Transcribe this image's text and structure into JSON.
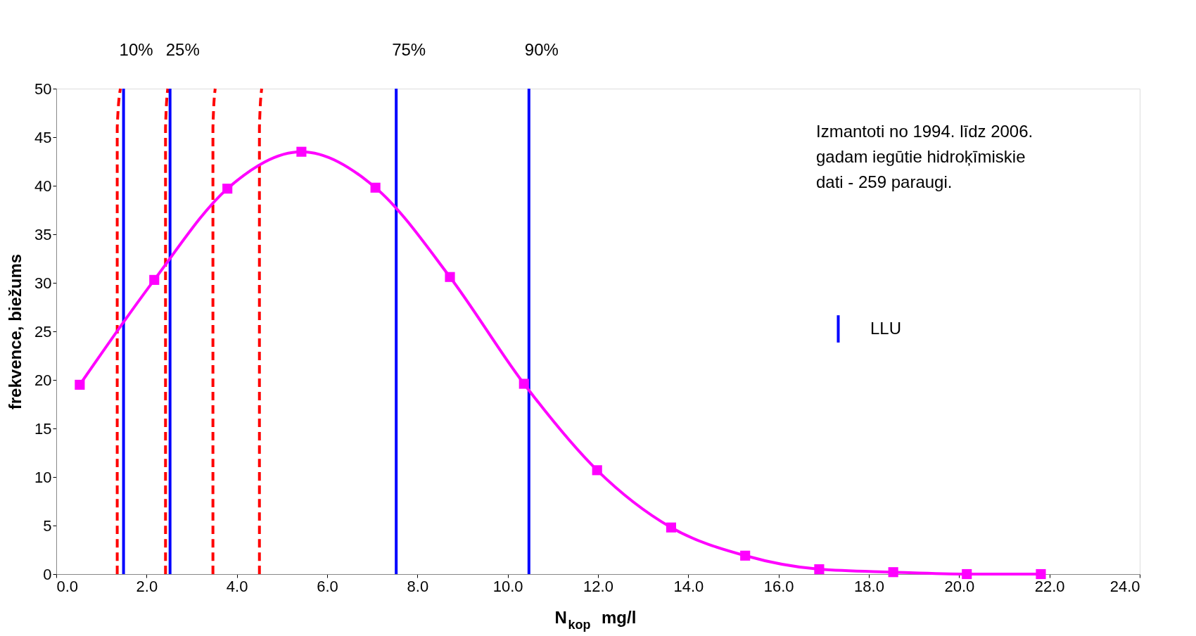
{
  "chart_data": {
    "type": "line",
    "xlabel": "N$_{kop}$ mg/l",
    "ylabel": "frekvence, biežums",
    "xlim": [
      0,
      24
    ],
    "ylim": [
      0,
      50
    ],
    "xticks": [
      {
        "value": 0,
        "label": "0.0"
      },
      {
        "value": 2,
        "label": "2.0"
      },
      {
        "value": 4,
        "label": "4.0"
      },
      {
        "value": 6,
        "label": "6.0"
      },
      {
        "value": 8,
        "label": "8.0"
      },
      {
        "value": 10,
        "label": "10.0"
      },
      {
        "value": 12,
        "label": "12.0"
      },
      {
        "value": 14,
        "label": "14.0"
      },
      {
        "value": 16,
        "label": "16.0"
      },
      {
        "value": 18,
        "label": "18.0"
      },
      {
        "value": 20,
        "label": "20.0"
      },
      {
        "value": 22,
        "label": "22.0"
      },
      {
        "value": 24,
        "label": "24.0"
      }
    ],
    "yticks": [
      0,
      5,
      10,
      15,
      20,
      25,
      30,
      35,
      40,
      45,
      50
    ],
    "grid": false,
    "legend": "right",
    "series": [
      {
        "color": "#ff0000",
        "line_style": "dashed",
        "marker": "none",
        "x": [
          1.35,
          1.35,
          1.42,
          null,
          2.42,
          2.42,
          2.47,
          null,
          3.47,
          3.47,
          3.52,
          null,
          4.5,
          4.5,
          4.55
        ],
        "values": [
          0,
          46,
          50,
          null,
          0,
          46,
          50,
          null,
          0,
          46,
          50,
          null,
          0,
          46,
          50
        ]
      },
      {
        "name": "LLU",
        "color": "#0000ff",
        "line_style": "solid",
        "marker": "none",
        "x": [
          1.49,
          1.49,
          null,
          2.52,
          2.52,
          null,
          7.53,
          7.53,
          null,
          10.47,
          10.47
        ],
        "values": [
          0,
          50,
          null,
          0,
          50,
          null,
          0,
          50,
          null,
          0,
          50
        ]
      },
      {
        "color": "#ff00ff",
        "line_style": "solid",
        "marker": "square",
        "x": [
          0.52,
          2.17,
          3.79,
          5.43,
          7.07,
          8.72,
          10.36,
          11.98,
          13.62,
          15.26,
          16.9,
          18.54,
          20.17,
          21.81
        ],
        "values": [
          19.5,
          30.3,
          39.7,
          43.5,
          39.8,
          30.6,
          19.6,
          10.7,
          4.8,
          1.9,
          0.5,
          0.2,
          0.0,
          0.0
        ]
      }
    ],
    "annotations": [
      {
        "text": "10%",
        "x": 1.49,
        "y": 50
      },
      {
        "text": "25%",
        "x": 2.52,
        "y": 50
      },
      {
        "text": "75%",
        "x": 7.53,
        "y": 50
      },
      {
        "text": "90%",
        "x": 10.47,
        "y": 50
      },
      "Izmantoti no 1994. līdz 2006.\ngadam iegūtie hidroķīmiskie\ndati - 259 paraugi."
    ]
  }
}
